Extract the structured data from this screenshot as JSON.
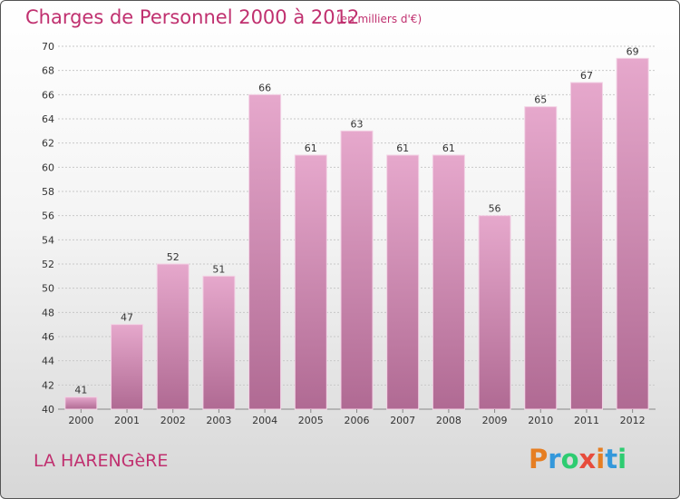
{
  "header": {
    "title": "Charges de Personnel 2000 à 2012",
    "subtitle": "(en milliers d'€)"
  },
  "footer": {
    "commune": "LA HARENGèRE",
    "logo_text": "Proxiti"
  },
  "colors": {
    "accent": "#c0306f",
    "bar_top": "#e6a8cc",
    "bar_bottom": "#b06a93"
  },
  "chart_data": {
    "type": "bar",
    "title": "Charges de Personnel 2000 à 2012",
    "subtitle": "(en milliers d'€)",
    "categories": [
      "2000",
      "2001",
      "2002",
      "2003",
      "2004",
      "2005",
      "2006",
      "2007",
      "2008",
      "2009",
      "2010",
      "2011",
      "2012"
    ],
    "values": [
      41,
      47,
      52,
      51,
      66,
      61,
      63,
      61,
      61,
      56,
      65,
      67,
      69
    ],
    "ylim": [
      40,
      70
    ],
    "yticks": [
      40,
      42,
      44,
      46,
      48,
      50,
      52,
      54,
      56,
      58,
      60,
      62,
      64,
      66,
      68,
      70
    ],
    "grid": true,
    "xlabel": "",
    "ylabel": ""
  }
}
